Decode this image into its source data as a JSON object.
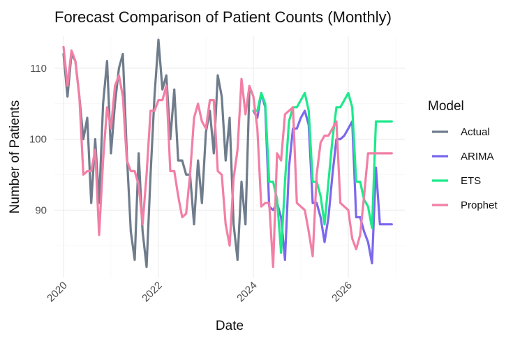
{
  "chart_data": {
    "type": "line",
    "title": "Forecast Comparison of Patient Counts (Monthly)",
    "xlabel": "Date",
    "ylabel": "Number of Patients",
    "xlim": [
      "2020-01",
      "2027-01"
    ],
    "ylim": [
      80.5,
      114.5
    ],
    "x_ticks": [
      "2020",
      "2022",
      "2024",
      "2026"
    ],
    "y_ticks": [
      90,
      100,
      110
    ],
    "grid": true,
    "legend": {
      "title": "Model",
      "position": "right"
    },
    "series": [
      {
        "name": "Actual",
        "color": "#6f7c8c",
        "x": [
          "2020-01",
          "2020-02",
          "2020-03",
          "2020-04",
          "2020-05",
          "2020-06",
          "2020-07",
          "2020-08",
          "2020-09",
          "2020-10",
          "2020-11",
          "2020-12",
          "2021-01",
          "2021-02",
          "2021-03",
          "2021-04",
          "2021-05",
          "2021-06",
          "2021-07",
          "2021-08",
          "2021-09",
          "2021-10",
          "2021-11",
          "2021-12",
          "2022-01",
          "2022-02",
          "2022-03",
          "2022-04",
          "2022-05",
          "2022-06",
          "2022-07",
          "2022-08",
          "2022-09",
          "2022-10",
          "2022-11",
          "2022-12",
          "2023-01",
          "2023-02",
          "2023-03",
          "2023-04",
          "2023-05",
          "2023-06",
          "2023-07",
          "2023-08",
          "2023-09",
          "2023-10",
          "2023-11",
          "2023-12"
        ],
        "y": [
          112,
          106,
          112,
          111,
          106,
          100,
          103,
          91,
          100,
          91,
          105,
          111,
          98,
          105,
          110,
          112,
          98,
          87,
          83,
          98,
          87,
          82,
          95,
          106,
          114,
          107,
          109,
          100,
          107,
          97,
          97,
          95,
          95,
          88,
          97,
          91,
          101,
          104,
          98,
          109,
          106,
          97,
          103,
          88,
          83,
          94,
          88,
          107
        ]
      },
      {
        "name": "ARIMA",
        "color": "#7b68ee",
        "x": [
          "2024-01",
          "2024-02",
          "2024-03",
          "2024-04",
          "2024-05",
          "2024-06",
          "2024-07",
          "2024-08",
          "2024-09",
          "2024-10",
          "2024-11",
          "2024-12",
          "2025-01",
          "2025-02",
          "2025-03",
          "2025-04",
          "2025-05",
          "2025-06",
          "2025-07",
          "2025-08",
          "2025-09",
          "2025-10",
          "2025-11",
          "2025-12",
          "2026-01",
          "2026-02",
          "2026-03",
          "2026-04",
          "2026-05",
          "2026-06",
          "2026-07",
          "2026-08",
          "2026-09",
          "2026-10",
          "2026-11",
          "2026-12"
        ],
        "y": [
          104,
          103,
          106.5,
          104.5,
          90.5,
          90,
          91,
          89,
          83,
          96,
          101.5,
          101.5,
          103,
          104,
          102,
          91,
          91,
          89,
          85.5,
          89,
          95,
          100,
          100,
          100.5,
          101.5,
          102.5,
          89,
          89,
          87,
          85.5,
          82.5,
          96,
          88,
          88,
          88,
          88
        ]
      },
      {
        "name": "ETS",
        "color": "#1de98b",
        "x": [
          "2024-01",
          "2024-02",
          "2024-03",
          "2024-04",
          "2024-05",
          "2024-06",
          "2024-07",
          "2024-08",
          "2024-09",
          "2024-10",
          "2024-11",
          "2024-12",
          "2025-01",
          "2025-02",
          "2025-03",
          "2025-04",
          "2025-05",
          "2025-06",
          "2025-07",
          "2025-08",
          "2025-09",
          "2025-10",
          "2025-11",
          "2025-12",
          "2026-01",
          "2026-02",
          "2026-03",
          "2026-04",
          "2026-05",
          "2026-06",
          "2026-07",
          "2026-08",
          "2026-09",
          "2026-10",
          "2026-11",
          "2026-12"
        ],
        "y": [
          104,
          104,
          106.5,
          105,
          94,
          94,
          91.5,
          84,
          94,
          102.5,
          104.5,
          104.5,
          105.5,
          106.5,
          104,
          94,
          94,
          92,
          88,
          94,
          100,
          104.5,
          104.5,
          105.5,
          106.5,
          104.5,
          94,
          94,
          91.5,
          90.5,
          87.5,
          102.5,
          102.5,
          102.5,
          102.5,
          102.5
        ]
      },
      {
        "name": "Prophet",
        "color": "#f27fa5",
        "x": [
          "2020-01",
          "2020-02",
          "2020-03",
          "2020-04",
          "2020-05",
          "2020-06",
          "2020-07",
          "2020-08",
          "2020-09",
          "2020-10",
          "2020-11",
          "2020-12",
          "2021-01",
          "2021-02",
          "2021-03",
          "2021-04",
          "2021-05",
          "2021-06",
          "2021-07",
          "2021-08",
          "2021-09",
          "2021-10",
          "2021-11",
          "2021-12",
          "2022-01",
          "2022-02",
          "2022-03",
          "2022-04",
          "2022-05",
          "2022-06",
          "2022-07",
          "2022-08",
          "2022-09",
          "2022-10",
          "2022-11",
          "2022-12",
          "2023-01",
          "2023-02",
          "2023-03",
          "2023-04",
          "2023-05",
          "2023-06",
          "2023-07",
          "2023-08",
          "2023-09",
          "2023-10",
          "2023-11",
          "2023-12",
          "2024-01",
          "2024-02",
          "2024-03",
          "2024-04",
          "2024-05",
          "2024-06",
          "2024-07",
          "2024-08",
          "2024-09",
          "2024-10",
          "2024-11",
          "2024-12",
          "2025-01",
          "2025-02",
          "2025-03",
          "2025-04",
          "2025-05",
          "2025-06",
          "2025-07",
          "2025-08",
          "2025-09",
          "2025-10",
          "2025-11",
          "2025-12",
          "2026-01",
          "2026-02",
          "2026-03",
          "2026-04",
          "2026-05",
          "2026-06",
          "2026-07",
          "2026-08",
          "2026-09",
          "2026-10",
          "2026-11",
          "2026-12"
        ],
        "y": [
          113,
          107.5,
          112.5,
          111,
          106,
          95,
          95.5,
          95.5,
          98.5,
          86.5,
          97,
          104.5,
          101.5,
          107.5,
          109,
          106,
          97,
          95.5,
          95.5,
          93.5,
          88,
          95,
          104,
          104,
          105.5,
          105.5,
          107.5,
          95.5,
          95.5,
          92,
          89,
          89.5,
          95,
          103,
          105,
          102.5,
          101.5,
          105.5,
          105.5,
          95.5,
          95,
          88,
          85,
          94.5,
          98.5,
          108.5,
          103.5,
          107.5,
          106,
          101.5,
          90.5,
          91,
          91,
          82,
          98,
          97,
          103.5,
          104,
          104.5,
          91,
          90.5,
          90,
          87,
          83.5,
          95,
          99.5,
          100.5,
          100.5,
          101.5,
          102.5,
          91,
          90.5,
          90,
          86,
          84.5,
          86.5,
          92,
          98,
          98,
          98,
          98,
          98,
          98,
          98
        ]
      }
    ]
  }
}
